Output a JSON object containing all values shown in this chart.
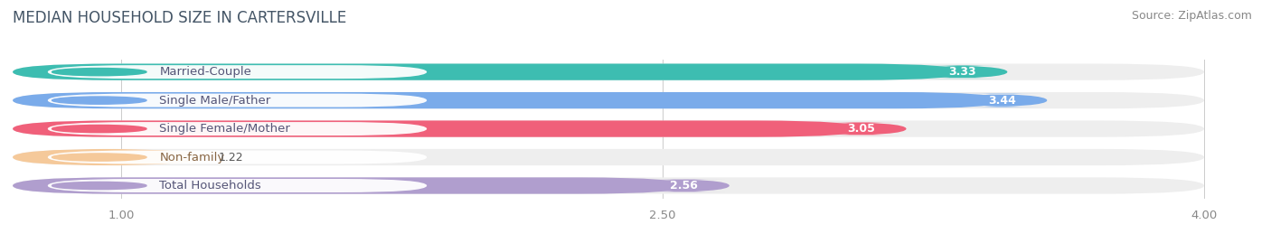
{
  "title": "MEDIAN HOUSEHOLD SIZE IN CARTERSVILLE",
  "source": "Source: ZipAtlas.com",
  "categories": [
    "Married-Couple",
    "Single Male/Father",
    "Single Female/Mother",
    "Non-family",
    "Total Households"
  ],
  "values": [
    3.33,
    3.44,
    3.05,
    1.22,
    2.56
  ],
  "bar_colors": [
    "#3dbdb1",
    "#7aabea",
    "#f0607a",
    "#f5c99a",
    "#b09ece"
  ],
  "bar_bg_color": "#eeeeee",
  "xlim_start": 0.7,
  "xlim_end": 4.15,
  "data_min": 1.0,
  "data_max": 4.0,
  "xticks": [
    1.0,
    2.5,
    4.0
  ],
  "xtick_labels": [
    "1.00",
    "2.50",
    "4.00"
  ],
  "title_fontsize": 12,
  "label_fontsize": 9.5,
  "value_fontsize": 9,
  "source_fontsize": 9,
  "bar_height": 0.58,
  "label_text_color": "#555577",
  "non_family_label_color": "#886644"
}
